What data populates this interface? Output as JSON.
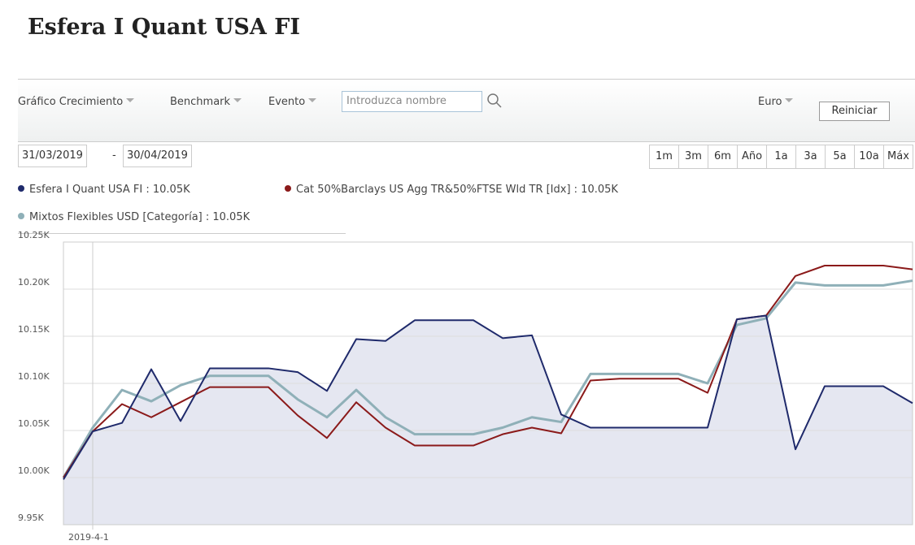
{
  "header": {
    "title": "Esfera I Quant USA FI"
  },
  "toolbar": {
    "menus": [
      "Gráfico Crecimiento",
      "Benchmark",
      "Evento"
    ],
    "search_placeholder": "Introduzca nombre",
    "currency": "Euro",
    "reset": "Reiniciar"
  },
  "dates": {
    "start": "31/03/2019",
    "separator": "-",
    "end": "30/04/2019"
  },
  "range_buttons": [
    "1m",
    "3m",
    "6m",
    "Año",
    "1a",
    "3a",
    "5a",
    "10a",
    "Máx"
  ],
  "chart_data": {
    "type": "line",
    "categories": [
      null,
      "2019-4-1",
      null,
      null,
      null,
      null,
      null,
      null,
      null,
      null,
      null,
      null,
      null,
      null,
      null,
      null,
      null,
      null,
      null,
      null,
      null,
      null,
      null,
      null,
      null,
      null,
      null,
      null,
      null,
      null
    ],
    "series": [
      {
        "name": "Esfera I Quant USA FI : 10.05K",
        "color": "#1f2a6b",
        "area": true,
        "values": [
          9998,
          10049,
          10058,
          10115,
          10060,
          10116,
          10116,
          10116,
          10112,
          10092,
          10147,
          10145,
          10167,
          10167,
          10167,
          10148,
          10151,
          10067,
          10053,
          10053,
          10053,
          10053,
          10053,
          10168,
          10172,
          10030,
          10097,
          10097,
          10097,
          10079
        ]
      },
      {
        "name": "Cat 50%Barclays US Agg TR&50%FTSE Wld TR [Idx] : 10.05K",
        "color": "#8b1a1a",
        "values": [
          10000,
          10049,
          10078,
          10064,
          10080,
          10096,
          10096,
          10096,
          10066,
          10042,
          10080,
          10053,
          10034,
          10034,
          10034,
          10046,
          10053,
          10047,
          10103,
          10105,
          10105,
          10105,
          10090,
          10168,
          10172,
          10214,
          10225,
          10225,
          10225,
          10221
        ]
      },
      {
        "name": "Mixtos Flexibles USD [Categoría] : 10.05K",
        "color": "#8fb0b8",
        "values": [
          10000,
          10053,
          10093,
          10081,
          10098,
          10108,
          10108,
          10108,
          10083,
          10064,
          10093,
          10064,
          10046,
          10046,
          10046,
          10053,
          10064,
          10059,
          10110,
          10110,
          10110,
          10110,
          10100,
          10162,
          10169,
          10207,
          10204,
          10204,
          10204,
          10209
        ]
      }
    ],
    "ylim": [
      9950,
      10250
    ],
    "yticks": [
      {
        "value": 9950,
        "label": "9.95K"
      },
      {
        "value": 10000,
        "label": "10.00K"
      },
      {
        "value": 10050,
        "label": "10.05K"
      },
      {
        "value": 10100,
        "label": "10.10K"
      },
      {
        "value": 10150,
        "label": "10.15K"
      },
      {
        "value": 10200,
        "label": "10.20K"
      },
      {
        "value": 10250,
        "label": "10.25K"
      }
    ],
    "grid": true
  }
}
